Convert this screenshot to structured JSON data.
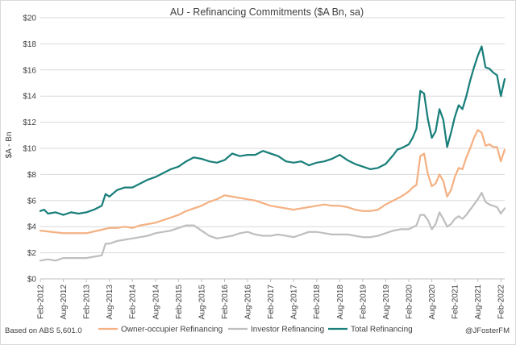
{
  "chart_data": {
    "type": "line",
    "title": "AU - Refinancing Commitments ($A Bn, sa)",
    "xlabel": "",
    "ylabel": "$A - Bn",
    "ylim": [
      0,
      20
    ],
    "yticks": [
      0,
      2,
      4,
      6,
      8,
      10,
      12,
      14,
      16,
      18,
      20
    ],
    "ytick_labels": [
      "$0",
      "$2",
      "$4",
      "$6",
      "$8",
      "$10",
      "$12",
      "$14",
      "$16",
      "$18",
      "$20"
    ],
    "xtick_labels": [
      "Feb-2012",
      "Aug-2012",
      "Feb-2013",
      "Aug-2013",
      "Feb-2014",
      "Aug-2014",
      "Feb-2015",
      "Aug-2015",
      "Feb-2016",
      "Aug-2016",
      "Feb-2017",
      "Aug-2017",
      "Feb-2018",
      "Aug-2018",
      "Feb-2019",
      "Aug-2019",
      "Feb-2020",
      "Aug-2020",
      "Feb-2021",
      "Aug-2021",
      "Feb-2022"
    ],
    "x_start": "Feb-2012",
    "x_end": "Feb-2022",
    "grid": true,
    "legend_position": "bottom",
    "series": [
      {
        "name": "Owner-occupier Refinancing",
        "color": "#f4b183",
        "points": [
          [
            0,
            3.7
          ],
          [
            3,
            3.6
          ],
          [
            6,
            3.5
          ],
          [
            9,
            3.5
          ],
          [
            12,
            3.5
          ],
          [
            15,
            3.7
          ],
          [
            18,
            3.9
          ],
          [
            20,
            3.9
          ],
          [
            22,
            4.0
          ],
          [
            24,
            3.9
          ],
          [
            26,
            4.1
          ],
          [
            28,
            4.2
          ],
          [
            30,
            4.3
          ],
          [
            32,
            4.5
          ],
          [
            34,
            4.7
          ],
          [
            36,
            4.9
          ],
          [
            38,
            5.2
          ],
          [
            40,
            5.4
          ],
          [
            42,
            5.6
          ],
          [
            44,
            5.9
          ],
          [
            46,
            6.1
          ],
          [
            48,
            6.4
          ],
          [
            50,
            6.3
          ],
          [
            52,
            6.2
          ],
          [
            54,
            6.1
          ],
          [
            56,
            6.0
          ],
          [
            58,
            5.8
          ],
          [
            60,
            5.6
          ],
          [
            62,
            5.5
          ],
          [
            64,
            5.4
          ],
          [
            66,
            5.3
          ],
          [
            68,
            5.4
          ],
          [
            70,
            5.5
          ],
          [
            72,
            5.6
          ],
          [
            74,
            5.7
          ],
          [
            76,
            5.6
          ],
          [
            78,
            5.6
          ],
          [
            80,
            5.5
          ],
          [
            82,
            5.3
          ],
          [
            84,
            5.2
          ],
          [
            86,
            5.2
          ],
          [
            88,
            5.3
          ],
          [
            90,
            5.7
          ],
          [
            92,
            6.0
          ],
          [
            94,
            6.3
          ],
          [
            96,
            6.7
          ],
          [
            97,
            7.0
          ],
          [
            98,
            7.2
          ],
          [
            99,
            9.4
          ],
          [
            100,
            9.6
          ],
          [
            101,
            8.0
          ],
          [
            102,
            7.1
          ],
          [
            103,
            7.3
          ],
          [
            104,
            8.0
          ],
          [
            105,
            7.5
          ],
          [
            106,
            6.3
          ],
          [
            107,
            6.8
          ],
          [
            108,
            7.8
          ],
          [
            109,
            8.5
          ],
          [
            110,
            8.4
          ],
          [
            111,
            9.3
          ],
          [
            112,
            10.0
          ],
          [
            113,
            10.8
          ],
          [
            114,
            11.4
          ],
          [
            115,
            11.2
          ],
          [
            116,
            10.2
          ],
          [
            117,
            10.3
          ],
          [
            118,
            10.1
          ],
          [
            119,
            10.1
          ],
          [
            120,
            9.0
          ],
          [
            121,
            9.9
          ]
        ]
      },
      {
        "name": "Investor Refinancing",
        "color": "#bfbfbf",
        "points": [
          [
            0,
            1.4
          ],
          [
            2,
            1.5
          ],
          [
            4,
            1.4
          ],
          [
            6,
            1.6
          ],
          [
            8,
            1.6
          ],
          [
            10,
            1.6
          ],
          [
            12,
            1.6
          ],
          [
            14,
            1.7
          ],
          [
            16,
            1.8
          ],
          [
            17,
            2.7
          ],
          [
            18,
            2.7
          ],
          [
            20,
            2.9
          ],
          [
            22,
            3.0
          ],
          [
            24,
            3.1
          ],
          [
            26,
            3.2
          ],
          [
            28,
            3.3
          ],
          [
            30,
            3.5
          ],
          [
            32,
            3.6
          ],
          [
            34,
            3.7
          ],
          [
            36,
            3.9
          ],
          [
            38,
            4.1
          ],
          [
            40,
            4.1
          ],
          [
            42,
            3.7
          ],
          [
            44,
            3.3
          ],
          [
            46,
            3.1
          ],
          [
            48,
            3.2
          ],
          [
            50,
            3.3
          ],
          [
            52,
            3.5
          ],
          [
            54,
            3.6
          ],
          [
            56,
            3.4
          ],
          [
            58,
            3.3
          ],
          [
            60,
            3.3
          ],
          [
            62,
            3.4
          ],
          [
            64,
            3.3
          ],
          [
            66,
            3.2
          ],
          [
            68,
            3.4
          ],
          [
            70,
            3.6
          ],
          [
            72,
            3.6
          ],
          [
            74,
            3.5
          ],
          [
            76,
            3.4
          ],
          [
            78,
            3.4
          ],
          [
            80,
            3.4
          ],
          [
            82,
            3.3
          ],
          [
            84,
            3.2
          ],
          [
            86,
            3.2
          ],
          [
            88,
            3.3
          ],
          [
            90,
            3.5
          ],
          [
            92,
            3.7
          ],
          [
            94,
            3.8
          ],
          [
            96,
            3.8
          ],
          [
            98,
            4.1
          ],
          [
            99,
            4.9
          ],
          [
            100,
            4.9
          ],
          [
            101,
            4.5
          ],
          [
            102,
            3.8
          ],
          [
            103,
            4.2
          ],
          [
            104,
            5.1
          ],
          [
            105,
            4.6
          ],
          [
            106,
            4.0
          ],
          [
            107,
            4.2
          ],
          [
            108,
            4.6
          ],
          [
            109,
            4.8
          ],
          [
            110,
            4.6
          ],
          [
            111,
            4.9
          ],
          [
            112,
            5.3
          ],
          [
            113,
            5.7
          ],
          [
            114,
            6.1
          ],
          [
            115,
            6.6
          ],
          [
            116,
            5.9
          ],
          [
            117,
            5.7
          ],
          [
            118,
            5.6
          ],
          [
            119,
            5.5
          ],
          [
            120,
            5.0
          ],
          [
            121,
            5.4
          ]
        ]
      },
      {
        "name": "Total Refinancing",
        "color": "#1a7f7a",
        "points": [
          [
            0,
            5.2
          ],
          [
            1,
            5.3
          ],
          [
            2,
            5.0
          ],
          [
            4,
            5.1
          ],
          [
            6,
            4.9
          ],
          [
            8,
            5.1
          ],
          [
            10,
            5.0
          ],
          [
            12,
            5.1
          ],
          [
            14,
            5.3
          ],
          [
            16,
            5.6
          ],
          [
            17,
            6.5
          ],
          [
            18,
            6.3
          ],
          [
            20,
            6.8
          ],
          [
            22,
            7.0
          ],
          [
            24,
            7.0
          ],
          [
            26,
            7.3
          ],
          [
            28,
            7.6
          ],
          [
            30,
            7.8
          ],
          [
            32,
            8.1
          ],
          [
            34,
            8.4
          ],
          [
            36,
            8.6
          ],
          [
            38,
            9.0
          ],
          [
            40,
            9.3
          ],
          [
            42,
            9.2
          ],
          [
            44,
            9.0
          ],
          [
            46,
            8.9
          ],
          [
            48,
            9.1
          ],
          [
            50,
            9.6
          ],
          [
            52,
            9.4
          ],
          [
            54,
            9.5
          ],
          [
            56,
            9.5
          ],
          [
            58,
            9.8
          ],
          [
            60,
            9.6
          ],
          [
            62,
            9.4
          ],
          [
            64,
            9.0
          ],
          [
            66,
            8.9
          ],
          [
            68,
            9.0
          ],
          [
            70,
            8.7
          ],
          [
            72,
            8.9
          ],
          [
            74,
            9.0
          ],
          [
            76,
            9.2
          ],
          [
            78,
            9.5
          ],
          [
            80,
            9.1
          ],
          [
            82,
            8.8
          ],
          [
            84,
            8.6
          ],
          [
            86,
            8.4
          ],
          [
            88,
            8.5
          ],
          [
            90,
            8.8
          ],
          [
            92,
            9.5
          ],
          [
            93,
            9.9
          ],
          [
            94,
            10.0
          ],
          [
            96,
            10.3
          ],
          [
            97,
            10.8
          ],
          [
            98,
            11.5
          ],
          [
            99,
            14.4
          ],
          [
            100,
            14.2
          ],
          [
            101,
            12.2
          ],
          [
            102,
            10.8
          ],
          [
            103,
            11.3
          ],
          [
            104,
            13.0
          ],
          [
            105,
            12.2
          ],
          [
            106,
            10.1
          ],
          [
            107,
            11.2
          ],
          [
            108,
            12.4
          ],
          [
            109,
            13.3
          ],
          [
            110,
            13.0
          ],
          [
            111,
            14.0
          ],
          [
            112,
            15.2
          ],
          [
            113,
            16.2
          ],
          [
            114,
            17.1
          ],
          [
            115,
            17.8
          ],
          [
            116,
            16.2
          ],
          [
            117,
            16.1
          ],
          [
            118,
            15.8
          ],
          [
            119,
            15.6
          ],
          [
            120,
            14.0
          ],
          [
            121,
            15.3
          ]
        ]
      }
    ]
  },
  "footer": {
    "source": "Based on ABS 5,601.0",
    "credit": "@JFosterFM"
  }
}
